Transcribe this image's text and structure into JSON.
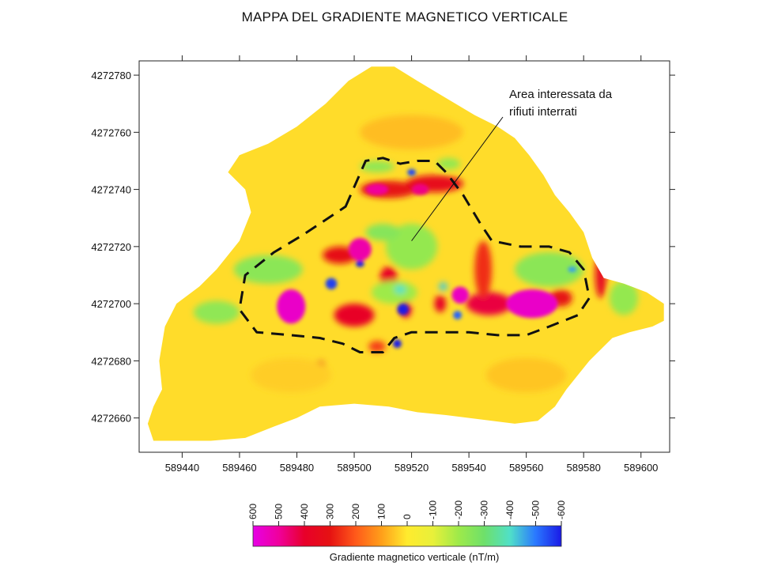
{
  "chart_data": {
    "type": "heatmap",
    "title": "MAPPA DEL GRADIENTE MAGNETICO VERTICALE",
    "xlim": [
      589425,
      589610
    ],
    "ylim": [
      4272648,
      4272785
    ],
    "x_ticks": [
      589440,
      589460,
      589480,
      589500,
      589520,
      589540,
      589560,
      589580,
      589600
    ],
    "y_ticks": [
      4272660,
      4272680,
      4272700,
      4272720,
      4272740,
      4272760,
      4272780
    ],
    "annotation": {
      "lines": [
        "Area interessata da",
        "rifiuti interrati"
      ],
      "anchor_xy": [
        589520,
        4272722
      ]
    },
    "survey_boundary": [
      [
        589428,
        4272658
      ],
      [
        589430,
        4272652
      ],
      [
        589440,
        4272652
      ],
      [
        589450,
        4272652
      ],
      [
        589462,
        4272653
      ],
      [
        589472,
        4272657
      ],
      [
        589480,
        4272660
      ],
      [
        589488,
        4272664
      ],
      [
        589500,
        4272665
      ],
      [
        589512,
        4272664
      ],
      [
        589522,
        4272662
      ],
      [
        589532,
        4272661
      ],
      [
        589540,
        4272660
      ],
      [
        589548,
        4272659
      ],
      [
        589556,
        4272658
      ],
      [
        589564,
        4272659
      ],
      [
        589570,
        4272664
      ],
      [
        589574,
        4272670
      ],
      [
        589578,
        4272675
      ],
      [
        589582,
        4272680
      ],
      [
        589586,
        4272684
      ],
      [
        589590,
        4272688
      ],
      [
        589596,
        4272690
      ],
      [
        589604,
        4272692
      ],
      [
        589608,
        4272694
      ],
      [
        589608,
        4272700
      ],
      [
        589602,
        4272704
      ],
      [
        589594,
        4272707
      ],
      [
        589587,
        4272709
      ],
      [
        589583,
        4272716
      ],
      [
        589580,
        4272725
      ],
      [
        589575,
        4272732
      ],
      [
        589570,
        4272738
      ],
      [
        589566,
        4272745
      ],
      [
        589561,
        4272752
      ],
      [
        589556,
        4272758
      ],
      [
        589550,
        4272762
      ],
      [
        589542,
        4272766
      ],
      [
        589532,
        4272772
      ],
      [
        589522,
        4272778
      ],
      [
        589514,
        4272783
      ],
      [
        589506,
        4272783
      ],
      [
        589498,
        4272778
      ],
      [
        589490,
        4272770
      ],
      [
        589480,
        4272762
      ],
      [
        589470,
        4272756
      ],
      [
        589460,
        4272752
      ],
      [
        589456,
        4272746
      ],
      [
        589462,
        4272740
      ],
      [
        589464,
        4272732
      ],
      [
        589460,
        4272722
      ],
      [
        589452,
        4272712
      ],
      [
        589446,
        4272706
      ],
      [
        589438,
        4272700
      ],
      [
        589434,
        4272692
      ],
      [
        589432,
        4272680
      ],
      [
        589433,
        4272670
      ],
      [
        589430,
        4272664
      ]
    ],
    "waste_area_outline": [
      [
        589497,
        4272734
      ],
      [
        589504,
        4272750
      ],
      [
        589510,
        4272751
      ],
      [
        589516,
        4272749
      ],
      [
        589522,
        4272750
      ],
      [
        589528,
        4272750
      ],
      [
        589532,
        4272746
      ],
      [
        589538,
        4272738
      ],
      [
        589544,
        4272728
      ],
      [
        589548,
        4272722
      ],
      [
        589558,
        4272720
      ],
      [
        589568,
        4272720
      ],
      [
        589575,
        4272718
      ],
      [
        589580,
        4272712
      ],
      [
        589582,
        4272702
      ],
      [
        589578,
        4272696
      ],
      [
        589568,
        4272692
      ],
      [
        589560,
        4272689
      ],
      [
        589550,
        4272689
      ],
      [
        589540,
        4272690
      ],
      [
        589530,
        4272690
      ],
      [
        589520,
        4272690
      ],
      [
        589514,
        4272688
      ],
      [
        589510,
        4272683
      ],
      [
        589502,
        4272683
      ],
      [
        589496,
        4272686
      ],
      [
        589488,
        4272688
      ],
      [
        589478,
        4272689
      ],
      [
        589466,
        4272690
      ],
      [
        589460,
        4272698
      ],
      [
        589462,
        4272710
      ],
      [
        589472,
        4272718
      ],
      [
        589482,
        4272724
      ],
      [
        589488,
        4272728
      ]
    ],
    "anomalies": [
      {
        "x": 589478,
        "y": 4272699,
        "rx": 5,
        "ry": 6,
        "value": 560
      },
      {
        "x": 589500,
        "y": 4272696,
        "rx": 7,
        "ry": 4,
        "value": 380
      },
      {
        "x": 589502,
        "y": 4272719,
        "rx": 4,
        "ry": 4,
        "value": 520
      },
      {
        "x": 589495,
        "y": 4272717,
        "rx": 6,
        "ry": 3,
        "value": 320
      },
      {
        "x": 589512,
        "y": 4272740,
        "rx": 10,
        "ry": 3,
        "value": 300
      },
      {
        "x": 589528,
        "y": 4272742,
        "rx": 10,
        "ry": 3,
        "value": 350
      },
      {
        "x": 589508,
        "y": 4272740,
        "rx": 4,
        "ry": 2,
        "value": 500
      },
      {
        "x": 589523,
        "y": 4272740,
        "rx": 3,
        "ry": 2,
        "value": 480
      },
      {
        "x": 589512,
        "y": 4272709,
        "rx": 3,
        "ry": 4,
        "value": 380
      },
      {
        "x": 589518,
        "y": 4272698,
        "rx": 2,
        "ry": 3,
        "value": 420
      },
      {
        "x": 589530,
        "y": 4272700,
        "rx": 2,
        "ry": 3,
        "value": 380
      },
      {
        "x": 589537,
        "y": 4272703,
        "rx": 3,
        "ry": 3,
        "value": 550
      },
      {
        "x": 589547,
        "y": 4272700,
        "rx": 8,
        "ry": 4,
        "value": 420
      },
      {
        "x": 589562,
        "y": 4272700,
        "rx": 9,
        "ry": 5,
        "value": 560
      },
      {
        "x": 589572,
        "y": 4272702,
        "rx": 4,
        "ry": 3,
        "value": 300
      },
      {
        "x": 589586,
        "y": 4272710,
        "rx": 2,
        "ry": 8,
        "value": 360
      },
      {
        "x": 589488,
        "y": 4272678,
        "rx": 2,
        "ry": 2,
        "value": 380
      },
      {
        "x": 589508,
        "y": 4272685,
        "rx": 3,
        "ry": 2,
        "value": 240
      },
      {
        "x": 589545,
        "y": 4272712,
        "rx": 3,
        "ry": 10,
        "value": 260
      },
      {
        "x": 589470,
        "y": 4272712,
        "rx": 12,
        "ry": 5,
        "value": -240
      },
      {
        "x": 589520,
        "y": 4272720,
        "rx": 9,
        "ry": 8,
        "value": -220
      },
      {
        "x": 589568,
        "y": 4272712,
        "rx": 12,
        "ry": 6,
        "value": -240
      },
      {
        "x": 589452,
        "y": 4272697,
        "rx": 8,
        "ry": 4,
        "value": -230
      },
      {
        "x": 589594,
        "y": 4272702,
        "rx": 5,
        "ry": 6,
        "value": -220
      },
      {
        "x": 589514,
        "y": 4272704,
        "rx": 8,
        "ry": 4,
        "value": -200
      },
      {
        "x": 589510,
        "y": 4272725,
        "rx": 6,
        "ry": 3,
        "value": -250
      },
      {
        "x": 589508,
        "y": 4272748,
        "rx": 6,
        "ry": 2,
        "value": -230
      },
      {
        "x": 589533,
        "y": 4272749,
        "rx": 4,
        "ry": 2,
        "value": -220
      },
      {
        "x": 589492,
        "y": 4272707,
        "rx": 2,
        "ry": 2,
        "value": -560
      },
      {
        "x": 589517,
        "y": 4272698,
        "rx": 2,
        "ry": 2,
        "value": -600
      },
      {
        "x": 589515,
        "y": 4272686,
        "rx": 1.5,
        "ry": 1.5,
        "value": -600
      },
      {
        "x": 589520,
        "y": 4272746,
        "rx": 1.5,
        "ry": 1.2,
        "value": -550
      },
      {
        "x": 589502,
        "y": 4272714,
        "rx": 1.5,
        "ry": 1.2,
        "value": -600
      },
      {
        "x": 589536,
        "y": 4272696,
        "rx": 1.5,
        "ry": 1.5,
        "value": -520
      },
      {
        "x": 589576,
        "y": 4272712,
        "rx": 1.5,
        "ry": 1,
        "value": -460
      },
      {
        "x": 589516,
        "y": 4272705,
        "rx": 2,
        "ry": 1.5,
        "value": -400
      },
      {
        "x": 589531,
        "y": 4272706,
        "rx": 1.5,
        "ry": 1.5,
        "value": -420
      },
      {
        "x": 589478,
        "y": 4272675,
        "rx": 14,
        "ry": 6,
        "value": 40
      },
      {
        "x": 589560,
        "y": 4272675,
        "rx": 14,
        "ry": 6,
        "value": 50
      },
      {
        "x": 589520,
        "y": 4272760,
        "rx": 18,
        "ry": 6,
        "value": 60
      }
    ]
  },
  "colorbar": {
    "title": "Gradiente magnetico verticale (nT/m)",
    "tick_labels": [
      "600",
      "500",
      "400",
      "300",
      "200",
      "100",
      "0",
      "-100",
      "-200",
      "-300",
      "-400",
      "-500",
      "-600"
    ],
    "range": [
      600,
      -600
    ],
    "stops": [
      {
        "value": 600,
        "color": "#e600e6"
      },
      {
        "value": 500,
        "color": "#f0009c"
      },
      {
        "value": 400,
        "color": "#e8002a"
      },
      {
        "value": 300,
        "color": "#e61212"
      },
      {
        "value": 200,
        "color": "#ff5a1a"
      },
      {
        "value": 100,
        "color": "#ff9f1a"
      },
      {
        "value": 0,
        "color": "#ffeb2e"
      },
      {
        "value": -100,
        "color": "#e8f03a"
      },
      {
        "value": -200,
        "color": "#9eea4a"
      },
      {
        "value": -300,
        "color": "#6ee06a"
      },
      {
        "value": -400,
        "color": "#50e0c8"
      },
      {
        "value": -500,
        "color": "#2a78ff"
      },
      {
        "value": -600,
        "color": "#1a1ae6"
      }
    ]
  }
}
